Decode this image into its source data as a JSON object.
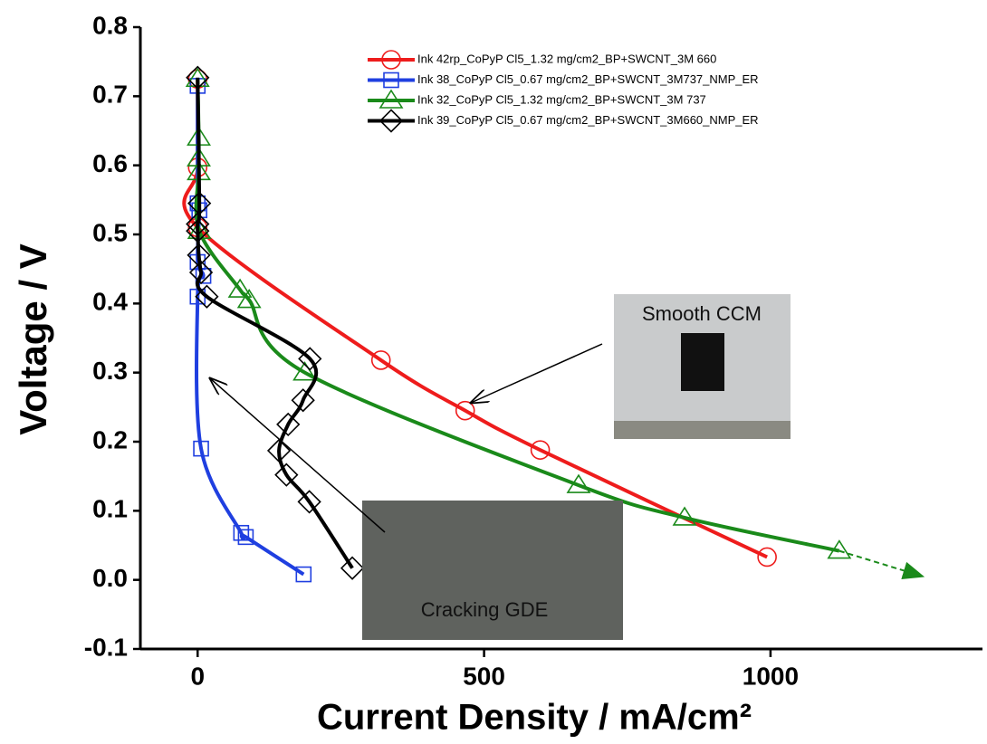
{
  "chart_data": {
    "type": "line",
    "x_label": "Current Density / mA/cm²",
    "y_label": "Voltage / V",
    "xlim": [
      -100,
      1370
    ],
    "ylim": [
      -0.1,
      0.8
    ],
    "xticks": [
      0,
      500,
      1000
    ],
    "yticks": [
      -0.1,
      {
        "value": 0,
        "label": "0.0"
      },
      0.1,
      0.2,
      0.3,
      0.4,
      0.5,
      0.6,
      0.7,
      0.8
    ],
    "legend": "top-right",
    "annotations": [
      "Smooth CCM",
      "Cracking GDE"
    ],
    "series": [
      {
        "name": "Ink 42rp_CoPyP Cl5_1.32 mg/cm2_BP+SWCNT_3M 660",
        "color": "#ee1c1c",
        "marker": "circle",
        "x": [
          0,
          0,
          0,
          320,
          467,
          598,
          994
        ],
        "values": [
          0.725,
          0.597,
          0.51,
          0.318,
          0.245,
          0.188,
          0.033
        ]
      },
      {
        "name": "Ink 38_CoPyP Cl5_0.67 mg/cm2_BP+SWCNT_3M737_NMP_ER",
        "color": "#1f3fe0",
        "marker": "square",
        "x": [
          0,
          0,
          3,
          0,
          10,
          0,
          6,
          76,
          84,
          185
        ],
        "values": [
          0.715,
          0.545,
          0.535,
          0.46,
          0.44,
          0.41,
          0.19,
          0.068,
          0.062,
          0.008
        ]
      },
      {
        "name": "Ink 32_CoPyP Cl5_1.32 mg/cm2_BP+SWCNT_3M 737",
        "color": "#1a8a1a",
        "marker": "triangle",
        "x": [
          0,
          2,
          2,
          2,
          3,
          74,
          90,
          187,
          665,
          850,
          1120
        ],
        "values": [
          0.725,
          0.64,
          0.61,
          0.59,
          0.505,
          0.42,
          0.405,
          0.3,
          0.137,
          0.09,
          0.042
        ],
        "extension_x": [
          1120,
          1266
        ],
        "extension_values": [
          0.042,
          0.005
        ]
      },
      {
        "name": "Ink 39_CoPyP Cl5_0.67 mg/cm2_BP+SWCNT_3M660_NMP_ER",
        "color": "#000000",
        "marker": "diamond",
        "x": [
          0,
          3,
          0,
          0,
          2,
          6,
          16,
          196,
          184,
          158,
          142,
          155,
          195,
          270
        ],
        "values": [
          0.727,
          0.545,
          0.515,
          0.505,
          0.47,
          0.445,
          0.41,
          0.32,
          0.26,
          0.225,
          0.187,
          0.152,
          0.113,
          0.017
        ]
      }
    ]
  }
}
